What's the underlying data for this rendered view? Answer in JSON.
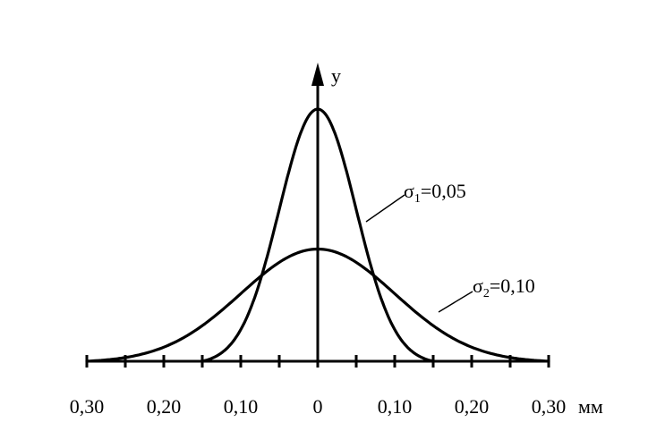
{
  "chart_data": {
    "type": "line",
    "title": "",
    "xlabel": "",
    "ylabel": "y",
    "x_unit": "мм",
    "xlim": [
      -0.3,
      0.3
    ],
    "tick_values": [
      -0.3,
      -0.25,
      -0.2,
      -0.15,
      -0.1,
      -0.05,
      0,
      0.05,
      0.1,
      0.15,
      0.2,
      0.25,
      0.3
    ],
    "tick_labels": [
      {
        "value": -0.3,
        "text": "0,30"
      },
      {
        "value": -0.2,
        "text": "0,20"
      },
      {
        "value": -0.1,
        "text": "0,10"
      },
      {
        "value": 0,
        "text": "0"
      },
      {
        "value": 0.1,
        "text": "0,10"
      },
      {
        "value": 0.2,
        "text": "0,20"
      },
      {
        "value": 0.3,
        "text": "0,30"
      }
    ],
    "series": [
      {
        "name": "σ1=0,05",
        "symbol": "σ",
        "subscript": "1",
        "value_text": "=0,05",
        "sigma": 0.05,
        "peak_relative": 1.0,
        "x": [
          -0.15,
          0.15
        ]
      },
      {
        "name": "σ2=0,10",
        "symbol": "σ",
        "subscript": "2",
        "value_text": "=0,10",
        "sigma": 0.1,
        "peak_relative": 0.445,
        "x": [
          -0.3,
          0.3
        ]
      }
    ],
    "grid": false,
    "legend": "inline-labels"
  }
}
